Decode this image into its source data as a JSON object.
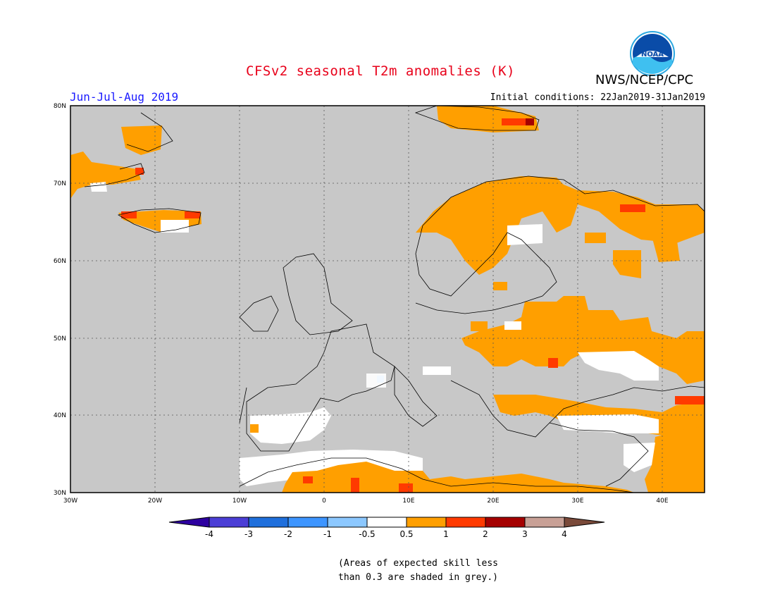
{
  "header": {
    "title": "CFSv2 seasonal T2m anomalies (K)",
    "season": "Jun-Jul-Aug 2019",
    "initial_conditions": "Initial conditions: 22Jan2019-31Jan2019",
    "agency": "NWS/NCEP/CPC",
    "logo_text": "NOAA"
  },
  "map": {
    "region": "Europe",
    "lon_range": [
      -30,
      45
    ],
    "lat_range": [
      30,
      80
    ],
    "lon_ticks": [
      "30W",
      "20W",
      "10W",
      "0",
      "10E",
      "20E",
      "30E",
      "40E"
    ],
    "lat_ticks": [
      "80N",
      "70N",
      "60N",
      "50N",
      "40N",
      "30N"
    ],
    "colors": {
      "grey_low_skill": "#c8c8c8",
      "neutral": "#ffffff",
      "a_0_5_1": "#ff9f00",
      "a_1_2": "#ff3a00",
      "a_2_3": "#a50000",
      "neg_0_5": "#6fb4ff"
    }
  },
  "colorbar": {
    "labels": [
      "-4",
      "-3",
      "-2",
      "-1",
      "-0.5",
      "0.5",
      "1",
      "2",
      "3",
      "4"
    ],
    "colors": [
      "#2d00a0",
      "#4b3ed6",
      "#1f6fdc",
      "#3d95ff",
      "#8cc8ff",
      "#ffffff",
      "#ff9f00",
      "#ff3a00",
      "#a50000",
      "#c8a096",
      "#7a4a3a"
    ]
  },
  "footnote": {
    "line1": "(Areas of expected skill less",
    "line2": "than 0.3 are shaded in grey.)"
  }
}
